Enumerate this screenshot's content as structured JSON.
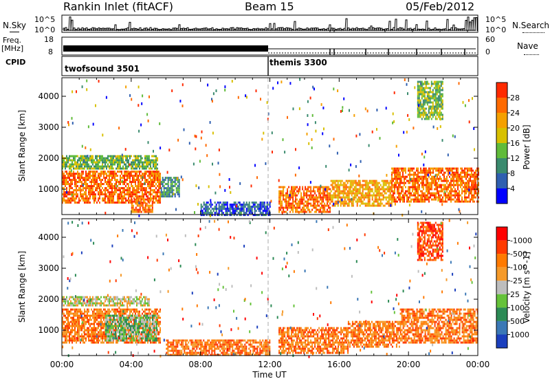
{
  "header": {
    "station": "Rankin Inlet (fitACF)",
    "beam": "Beam 15",
    "date": "05/Feb/2012"
  },
  "nsky_panel": {
    "left_label": "N.Sky",
    "right_label": "N.Search",
    "tick_top": "10^5",
    "tick_bottom": "10^0"
  },
  "freq_panel": {
    "left_label_line1": "Freq.",
    "left_label_line2": "[MHz]",
    "left_tick_top": "18",
    "left_tick_bottom": "8",
    "right_label": "Nave",
    "right_tick_top": "60",
    "right_tick_bottom": "0"
  },
  "cpid": {
    "label": "CPID",
    "modes": [
      {
        "name": "twofsound 3501",
        "start_hour": 0
      },
      {
        "name": "themis 3300",
        "start_hour": 12
      }
    ]
  },
  "x_axis": {
    "label": "Time UT",
    "ticks": [
      "00:00",
      "04:00",
      "08:00",
      "12:00",
      "16:00",
      "20:00",
      "00:00"
    ]
  },
  "chart_data": [
    {
      "type": "heatmap",
      "title": "",
      "xlabel": "Time UT",
      "ylabel": "Slant Range [km]",
      "xlim": [
        0,
        24
      ],
      "ylim": [
        180,
        4600
      ],
      "y_ticks": [
        1000,
        2000,
        3000,
        4000
      ],
      "colorbar": {
        "label": "Power [dB]",
        "tick_labels": [
          "4",
          "8",
          "12",
          "16",
          "20",
          "24",
          "28"
        ],
        "colors": [
          "#0000ff",
          "#2f5fb0",
          "#3a8a6e",
          "#60bb3a",
          "#d8c000",
          "#f5a000",
          "#ff6a00",
          "#ff2a00"
        ]
      },
      "regions": [
        {
          "t0": 0.0,
          "t1": 5.7,
          "r0": 600,
          "r1": 1600,
          "level": 6
        },
        {
          "t0": 0.0,
          "t1": 5.5,
          "r0": 1700,
          "r1": 2100,
          "level": 3
        },
        {
          "t0": 4.0,
          "t1": 5.2,
          "r0": 250,
          "r1": 700,
          "level": 6
        },
        {
          "t0": 5.7,
          "t1": 6.8,
          "r0": 800,
          "r1": 1400,
          "level": 2
        },
        {
          "t0": 12.5,
          "t1": 15.5,
          "r0": 300,
          "r1": 1100,
          "level": 6
        },
        {
          "t0": 15.5,
          "t1": 19.0,
          "r0": 500,
          "r1": 1300,
          "level": 5
        },
        {
          "t0": 19.0,
          "t1": 24.0,
          "r0": 600,
          "r1": 1700,
          "level": 6
        },
        {
          "t0": 20.5,
          "t1": 22.0,
          "r0": 3300,
          "r1": 4500,
          "level": 3
        },
        {
          "t0": 8.0,
          "t1": 12.0,
          "r0": 200,
          "r1": 600,
          "level": 1
        }
      ]
    },
    {
      "type": "heatmap",
      "title": "",
      "xlabel": "Time UT",
      "ylabel": "Slant Range [km]",
      "xlim": [
        0,
        24
      ],
      "ylim": [
        180,
        4600
      ],
      "y_ticks": [
        1000,
        2000,
        3000,
        4000
      ],
      "colorbar": {
        "label": "Velocity [m s^-1]",
        "tick_labels": [
          "1000",
          "500",
          "100",
          "25",
          "-25",
          "-100",
          "-500",
          "-1000"
        ],
        "colors": [
          "#1b3fbd",
          "#3b78b6",
          "#2c8a55",
          "#65c23a",
          "#bdbdbd",
          "#f59a2a",
          "#ff7a00",
          "#ff3a00",
          "#ff0000"
        ]
      },
      "regions": [
        {
          "t0": 0.0,
          "t1": 5.7,
          "r0": 600,
          "r1": 1700,
          "level": 6
        },
        {
          "t0": 2.5,
          "t1": 5.5,
          "r0": 700,
          "r1": 1500,
          "level": 3
        },
        {
          "t0": 0.0,
          "t1": 5.0,
          "r0": 1800,
          "r1": 2100,
          "level": 4
        },
        {
          "t0": 12.5,
          "t1": 16.5,
          "r0": 300,
          "r1": 1100,
          "level": 6
        },
        {
          "t0": 16.5,
          "t1": 19.5,
          "r0": 500,
          "r1": 1300,
          "level": 6
        },
        {
          "t0": 19.5,
          "t1": 24.0,
          "r0": 600,
          "r1": 1700,
          "level": 6
        },
        {
          "t0": 20.5,
          "t1": 22.0,
          "r0": 3300,
          "r1": 4500,
          "level": 7
        },
        {
          "t0": 6.0,
          "t1": 12.0,
          "r0": 200,
          "r1": 700,
          "level": 6
        }
      ]
    }
  ]
}
